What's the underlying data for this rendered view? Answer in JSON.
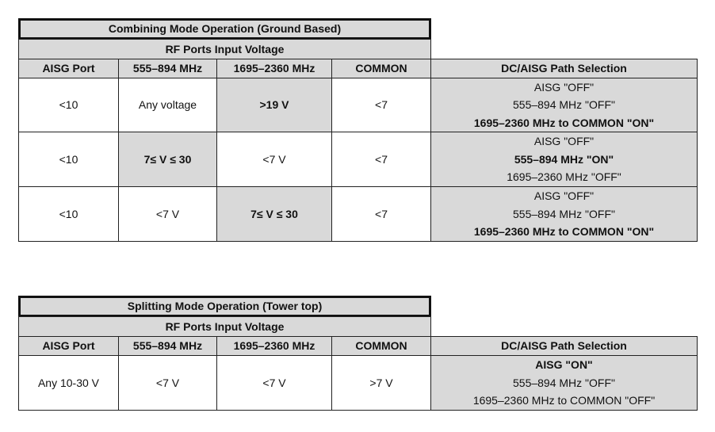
{
  "tables": [
    {
      "title": "Combining Mode Operation (Ground Based)",
      "group_header": "RF Ports Input Voltage",
      "columns": [
        "AISG Port",
        "555–894 MHz",
        "1695–2360 MHz",
        "COMMON",
        "DC/AISG Path Selection"
      ],
      "rows": [
        {
          "cells": [
            "<10",
            "Any voltage",
            ">19 V",
            "<7"
          ],
          "highlight": [
            false,
            false,
            true,
            false
          ],
          "path": [
            "AISG  \"OFF\"",
            "555–894 MHz  \"OFF\"",
            "1695–2360 MHz to COMMON \"ON\""
          ],
          "path_bold": [
            false,
            false,
            true
          ]
        },
        {
          "cells": [
            "<10",
            "7≤ V ≤ 30",
            "<7 V",
            "<7"
          ],
          "highlight": [
            false,
            true,
            false,
            false
          ],
          "path": [
            "AISG  \"OFF\"",
            "555–894 MHz \"ON\"",
            "1695–2360 MHz \"OFF\""
          ],
          "path_bold": [
            false,
            true,
            false
          ]
        },
        {
          "cells": [
            "<10",
            "<7 V",
            "7≤ V ≤ 30",
            "<7"
          ],
          "highlight": [
            false,
            false,
            true,
            false
          ],
          "path": [
            "AISG \"OFF\"",
            "555–894 MHz  \"OFF\"",
            "1695–2360 MHz to COMMON \"ON\""
          ],
          "path_bold": [
            false,
            false,
            true
          ]
        }
      ]
    },
    {
      "title": "Splitting Mode Operation (Tower top)",
      "group_header": "RF Ports Input Voltage",
      "columns": [
        "AISG Port",
        "555–894 MHz",
        "1695–2360 MHz",
        "COMMON",
        "DC/AISG Path Selection"
      ],
      "rows": [
        {
          "cells": [
            "Any 10-30 V",
            "<7 V",
            "<7 V",
            ">7 V"
          ],
          "highlight": [
            false,
            false,
            false,
            false
          ],
          "path": [
            "AISG \"ON\"",
            "555–894 MHz  \"OFF\"",
            "1695–2360 MHz to COMMON \"OFF\""
          ],
          "path_bold": [
            true,
            false,
            false
          ]
        }
      ]
    }
  ],
  "colors": {
    "header_fill": "#d9d9d9",
    "border": "#222222"
  }
}
